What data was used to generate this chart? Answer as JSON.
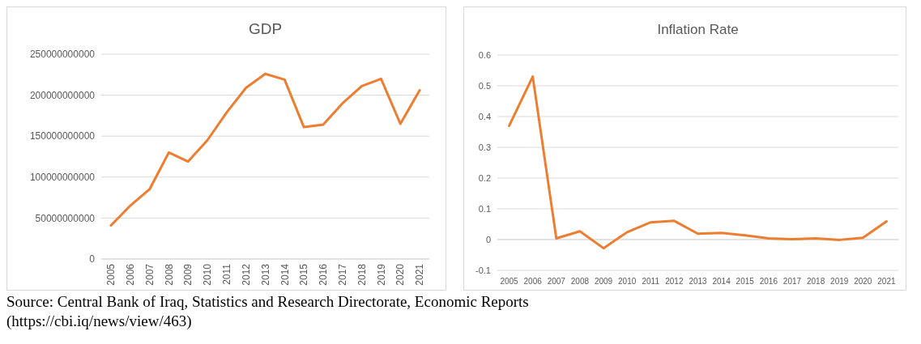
{
  "chart_data": [
    {
      "type": "line",
      "title": "GDP",
      "categories": [
        "2005",
        "2006",
        "2007",
        "2008",
        "2009",
        "2010",
        "2011",
        "2012",
        "2013",
        "2014",
        "2015",
        "2016",
        "2017",
        "2018",
        "2019",
        "2020",
        "2021"
      ],
      "series": [
        {
          "color": "#ed7d31",
          "values": [
            41000000000,
            65000000000,
            85000000000,
            130000000000,
            119000000000,
            145000000000,
            179000000000,
            209000000000,
            226000000000,
            219000000000,
            161000000000,
            164000000000,
            190000000000,
            211000000000,
            220000000000,
            165000000000,
            206000000000
          ]
        }
      ],
      "ylim": [
        0,
        250000000000
      ],
      "yticks": [
        0,
        50000000000,
        100000000000,
        150000000000,
        200000000000,
        250000000000
      ],
      "grid": "y",
      "annotations": [
        "Source: Central Bank of Iraq, Statistics and Research Directorate, Economic Reports (https://cbi.iq/news/view/463)"
      ]
    },
    {
      "type": "line",
      "title": "Inflation Rate",
      "categories": [
        "2005",
        "2006",
        "2007",
        "2008",
        "2009",
        "2010",
        "2011",
        "2012",
        "2013",
        "2014",
        "2015",
        "2016",
        "2017",
        "2018",
        "2019",
        "2020",
        "2021"
      ],
      "series": [
        {
          "color": "#ed7d31",
          "values": [
            0.37,
            0.53,
            0.004,
            0.027,
            -0.028,
            0.024,
            0.056,
            0.061,
            0.019,
            0.022,
            0.014,
            0.004,
            0.001,
            0.004,
            -0.001,
            0.006,
            0.059
          ]
        }
      ],
      "ylim": [
        -0.1,
        0.6
      ],
      "yticks": [
        -0.1,
        0,
        0.1,
        0.2,
        0.3,
        0.4,
        0.5,
        0.6
      ],
      "grid": "y"
    }
  ]
}
